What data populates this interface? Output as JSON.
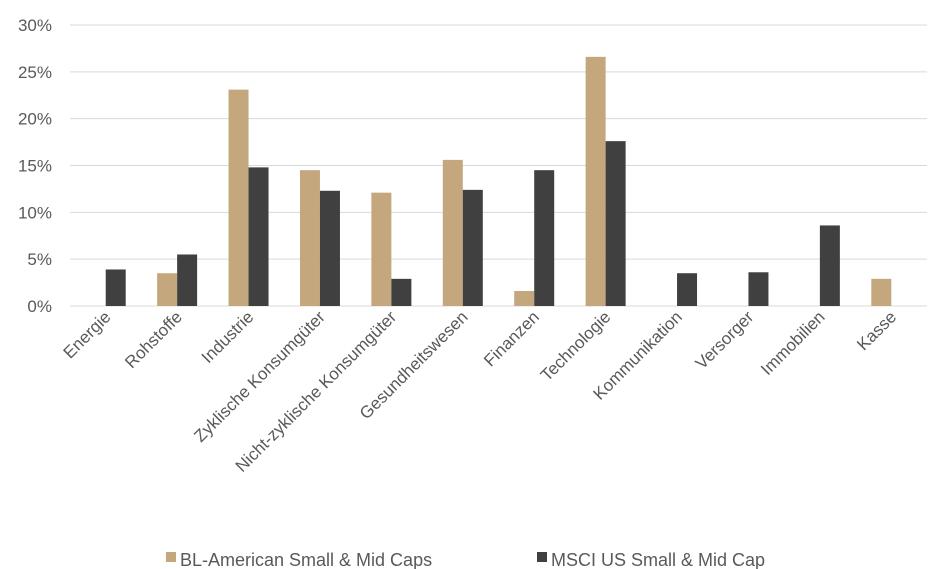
{
  "chart_data": {
    "type": "bar",
    "categories": [
      "Energie",
      "Rohstoffe",
      "Industrie",
      "Zyklische Konsumgüter",
      "Nicht-zyklische Konsumgüter",
      "Gesundheitswesen",
      "Finanzen",
      "Technologie",
      "Kommunikation",
      "Versorger",
      "Immobilien",
      "Kasse"
    ],
    "series": [
      {
        "name": "BL-American Small & Mid Caps",
        "color": "#c4a77d",
        "values": [
          0,
          3.5,
          23.1,
          14.5,
          12.1,
          15.6,
          1.6,
          26.6,
          0,
          0,
          0,
          2.9
        ]
      },
      {
        "name": "MSCI US Small & Mid Cap",
        "color": "#404040",
        "values": [
          3.9,
          5.5,
          14.8,
          12.3,
          2.9,
          12.4,
          14.5,
          17.6,
          3.5,
          3.6,
          8.6,
          0
        ]
      }
    ],
    "ylim": [
      0,
      30
    ],
    "yticks": [
      "0%",
      "5%",
      "10%",
      "15%",
      "20%",
      "25%",
      "30%"
    ],
    "grid": true,
    "legend_position": "bottom"
  }
}
